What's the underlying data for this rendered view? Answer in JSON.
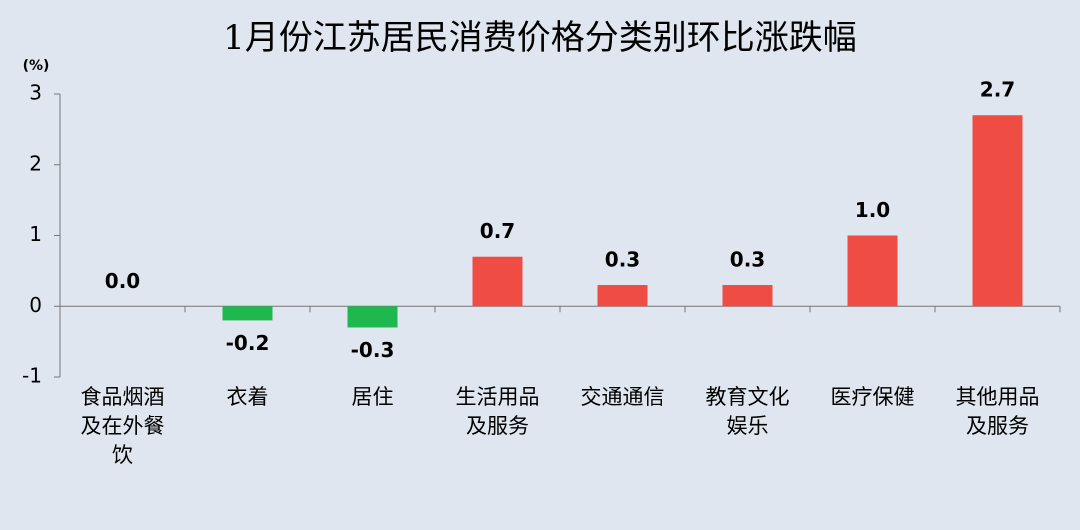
{
  "chart_data": {
    "type": "bar",
    "title": "1月份江苏居民消费价格分类别环比涨跌幅",
    "y_label": "(%)",
    "categories": [
      "食品烟酒及在外餐饮",
      "衣着",
      "居住",
      "生活用品及服务",
      "交通通信",
      "教育文化娱乐",
      "医疗保健",
      "其他用品及服务"
    ],
    "values": [
      0,
      -0.2,
      -0.3,
      0.7,
      0.3,
      0.3,
      1,
      2.7
    ],
    "value_labels": [
      "0.0",
      "-0.2",
      "-0.3",
      "0.7",
      "0.3",
      "0.3",
      "1.0",
      "2.7"
    ],
    "color": "#ef4c44",
    "negative_color": "#1fb84e",
    "ylim": [
      -1,
      3
    ],
    "yticks": [
      -1,
      0,
      1,
      2,
      3
    ]
  }
}
